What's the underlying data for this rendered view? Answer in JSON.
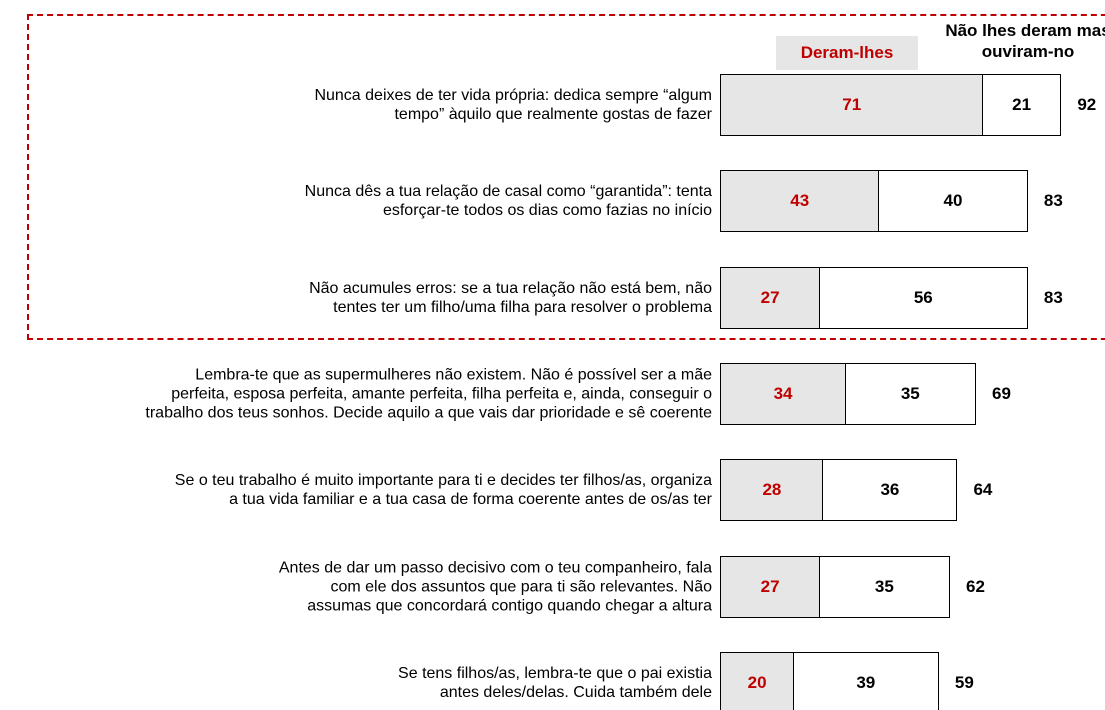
{
  "chart_data": {
    "type": "stacked-bar-horizontal",
    "categories": [
      "Nunca deixes de ter vida própria: dedica sempre “algum\ntempo” àquilo que realmente gostas de fazer",
      "Nunca dês a tua relação de casal como “garantida”: tenta\nesforçar-te todos os dias como fazias no início",
      "Não acumules erros: se a tua relação não está bem, não\ntentes ter um filho/uma filha para resolver o problema",
      "Lembra-te que as supermulheres não existem. Não é possível ser a mãe\nperfeita, esposa perfeita, amante perfeita, filha perfeita e, ainda, conseguir o\ntrabalho dos teus sonhos. Decide aquilo a que vais dar prioridade e sê coerente",
      "Se o teu trabalho é muito importante para ti e decides ter filhos/as, organiza\na tua vida familiar e a tua casa de forma coerente antes de os/as ter",
      "Antes de dar um passo decisivo com o teu companheiro, fala\ncom ele dos assuntos que para ti são relevantes. Não\nassumas que concordará contigo quando chegar a altura",
      "Se tens filhos/as, lembra-te que o pai existia\nantes deles/delas. Cuida também dele"
    ],
    "series": [
      {
        "name": "Deram-lhes",
        "color": "#e6e6e6",
        "label_color": "#c00000",
        "values": [
          71,
          43,
          27,
          34,
          28,
          27,
          20
        ]
      },
      {
        "name": "Não lhes deram mas ouviram-no",
        "color": "#ffffff",
        "label_color": "#000000",
        "values": [
          21,
          40,
          56,
          35,
          36,
          35,
          39
        ]
      }
    ],
    "totals": [
      92,
      83,
      83,
      69,
      64,
      62,
      59
    ],
    "highlight_color": "#c00000"
  }
}
